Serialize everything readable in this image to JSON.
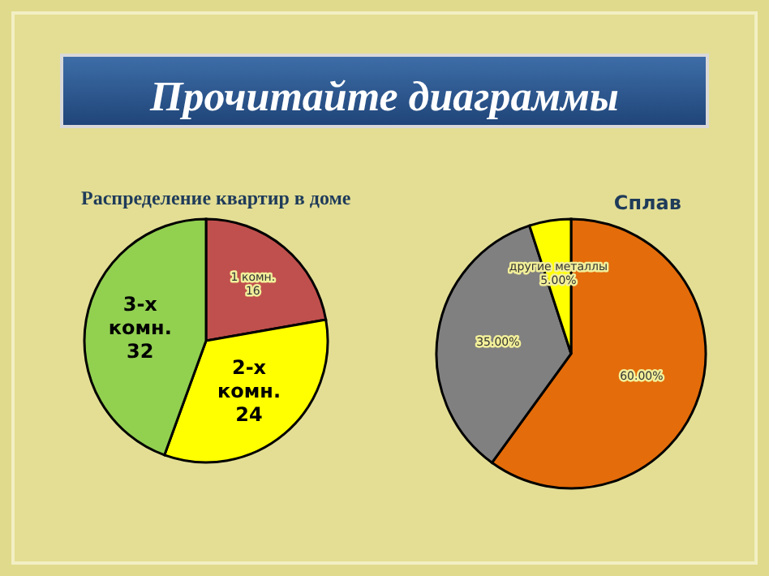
{
  "chart_data": [
    {
      "type": "other",
      "title": "Прочитайте диаграммы"
    },
    {
      "type": "pie",
      "title": "Распределение квартир в доме",
      "categories": [
        "1 комн.",
        "2-х комн.",
        "3-х комн."
      ],
      "values": [
        16,
        24,
        32
      ],
      "colors": [
        "#c0504d",
        "#ffff00",
        "#92d050"
      ],
      "data_labels": true
    },
    {
      "type": "pie",
      "title": "Сплав",
      "categories": [
        null,
        null,
        "другие металлы"
      ],
      "values": [
        60,
        35,
        5
      ],
      "colors": [
        "#e46c0a",
        "#808080",
        "#ffff00"
      ],
      "value_labels": [
        "60.00%",
        "35.00%",
        "5.00%"
      ]
    }
  ]
}
